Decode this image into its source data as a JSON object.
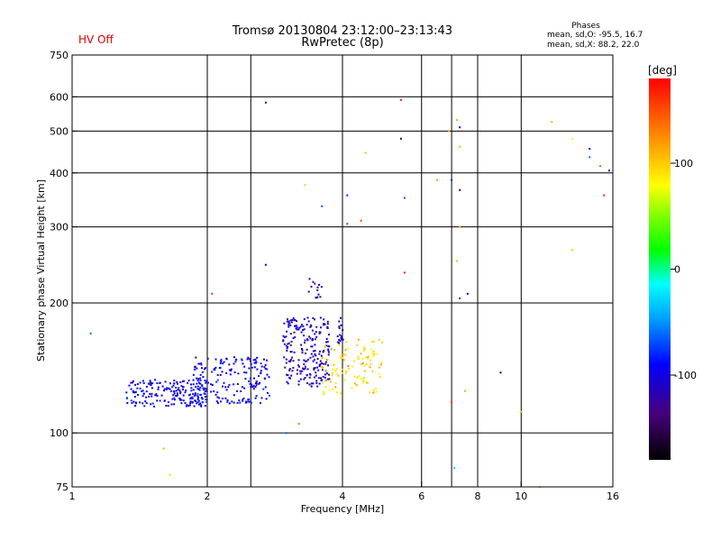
{
  "title": {
    "line1": "Tromsø 20130804 23:12:00–23:13:43",
    "line2": "RwPretec (8p)"
  },
  "status": {
    "hv": "HV Off",
    "hv_color": "#e00000"
  },
  "phases_info": {
    "heading": "Phases",
    "o_line": "mean, sd,O: -95.5, 16.7",
    "x_line": "mean, sd,X:  88.2, 22.0"
  },
  "colorbar": {
    "unit_label": "[deg]",
    "range": [
      -180,
      180
    ],
    "ticks": [
      {
        "value": 100,
        "label": "100"
      },
      {
        "value": 0,
        "label": "0"
      },
      {
        "value": -100,
        "label": "-100"
      }
    ]
  },
  "chart_data": {
    "type": "scatter",
    "xlabel": "Frequency [MHz]",
    "ylabel": "Stationary phase Virtual Height [km]",
    "xscale": "log",
    "yscale": "log",
    "xlim": [
      1,
      16
    ],
    "ylim": [
      75,
      750
    ],
    "grid": true,
    "xticks": [
      {
        "value": 1,
        "label": "1"
      },
      {
        "value": 2,
        "label": "2"
      },
      {
        "value": 4,
        "label": "4"
      },
      {
        "value": 6,
        "label": "6"
      },
      {
        "value": 8,
        "label": "8"
      },
      {
        "value": 10,
        "label": "10"
      },
      {
        "value": 16,
        "label": "16"
      }
    ],
    "xgrid": [
      2,
      2.5,
      4,
      6,
      7,
      8,
      10
    ],
    "yticks": [
      {
        "value": 75,
        "label": "75"
      },
      {
        "value": 100,
        "label": "100"
      },
      {
        "value": 200,
        "label": "200"
      },
      {
        "value": 300,
        "label": "300"
      },
      {
        "value": 400,
        "label": "400"
      },
      {
        "value": 500,
        "label": "500"
      },
      {
        "value": 600,
        "label": "600"
      },
      {
        "value": 750,
        "label": "750"
      }
    ],
    "ygrid": [
      100,
      200,
      300,
      400,
      500,
      600
    ],
    "clusters": [
      {
        "component": "O",
        "f_range": [
          1.32,
          2.0
        ],
        "h_range": [
          115,
          133
        ],
        "count": 180,
        "phase_mean": -95,
        "phase_sd": 10
      },
      {
        "component": "O",
        "f_range": [
          1.85,
          2.75
        ],
        "h_range": [
          117,
          150
        ],
        "count": 190,
        "phase_mean": -95,
        "phase_sd": 12
      },
      {
        "component": "O",
        "f_range": [
          2.95,
          3.75
        ],
        "h_range": [
          128,
          185
        ],
        "count": 220,
        "phase_mean": -115,
        "phase_sd": 15
      },
      {
        "component": "O",
        "f_range": [
          3.35,
          3.6
        ],
        "h_range": [
          205,
          230
        ],
        "count": 14,
        "phase_mean": -120,
        "phase_sd": 8
      },
      {
        "component": "O",
        "f_range": [
          3.9,
          4.05
        ],
        "h_range": [
          160,
          185
        ],
        "count": 16,
        "phase_mean": -115,
        "phase_sd": 10
      },
      {
        "component": "X",
        "f_range": [
          3.6,
          4.9
        ],
        "h_range": [
          123,
          165
        ],
        "count": 110,
        "phase_mean": 95,
        "phase_sd": 14
      }
    ],
    "scattered_points": [
      {
        "f": 1.1,
        "h": 170,
        "phase": -60
      },
      {
        "f": 1.6,
        "h": 92,
        "phase": 110
      },
      {
        "f": 1.65,
        "h": 80,
        "phase": 95
      },
      {
        "f": 2.7,
        "h": 582,
        "phase": -150
      },
      {
        "f": 2.7,
        "h": 245,
        "phase": -90
      },
      {
        "f": 2.05,
        "h": 210,
        "phase": 160
      },
      {
        "f": 3.0,
        "h": 100,
        "phase": -60
      },
      {
        "f": 3.2,
        "h": 105,
        "phase": 130
      },
      {
        "f": 3.3,
        "h": 375,
        "phase": 100
      },
      {
        "f": 3.6,
        "h": 335,
        "phase": -70
      },
      {
        "f": 4.1,
        "h": 355,
        "phase": -80
      },
      {
        "f": 4.4,
        "h": 310,
        "phase": 160
      },
      {
        "f": 4.1,
        "h": 305,
        "phase": -60
      },
      {
        "f": 4.5,
        "h": 445,
        "phase": 110
      },
      {
        "f": 5.4,
        "h": 590,
        "phase": 170
      },
      {
        "f": 5.4,
        "h": 480,
        "phase": -150
      },
      {
        "f": 5.5,
        "h": 235,
        "phase": 170
      },
      {
        "f": 5.5,
        "h": 350,
        "phase": -70
      },
      {
        "f": 6.5,
        "h": 385,
        "phase": 120
      },
      {
        "f": 6.9,
        "h": 500,
        "phase": 120
      },
      {
        "f": 7.0,
        "h": 385,
        "phase": -80
      },
      {
        "f": 7.3,
        "h": 365,
        "phase": -130
      },
      {
        "f": 7.2,
        "h": 530,
        "phase": 120
      },
      {
        "f": 7.3,
        "h": 510,
        "phase": -90
      },
      {
        "f": 7.3,
        "h": 460,
        "phase": 110
      },
      {
        "f": 7.3,
        "h": 300,
        "phase": 110
      },
      {
        "f": 7.2,
        "h": 250,
        "phase": 110
      },
      {
        "f": 7.3,
        "h": 205,
        "phase": -80
      },
      {
        "f": 7.6,
        "h": 210,
        "phase": -90
      },
      {
        "f": 7.0,
        "h": 118,
        "phase": 160
      },
      {
        "f": 7.5,
        "h": 125,
        "phase": 110
      },
      {
        "f": 7.1,
        "h": 83,
        "phase": -30
      },
      {
        "f": 9.0,
        "h": 138,
        "phase": -160
      },
      {
        "f": 10.0,
        "h": 112,
        "phase": 50
      },
      {
        "f": 11.7,
        "h": 525,
        "phase": 110
      },
      {
        "f": 13.0,
        "h": 480,
        "phase": 70
      },
      {
        "f": 14.2,
        "h": 455,
        "phase": -90
      },
      {
        "f": 14.2,
        "h": 435,
        "phase": -60
      },
      {
        "f": 15.0,
        "h": 415,
        "phase": 140
      },
      {
        "f": 15.7,
        "h": 405,
        "phase": -110
      },
      {
        "f": 15.3,
        "h": 355,
        "phase": 170
      },
      {
        "f": 13.0,
        "h": 265,
        "phase": 60
      },
      {
        "f": 11.0,
        "h": 75,
        "phase": 100
      }
    ]
  }
}
